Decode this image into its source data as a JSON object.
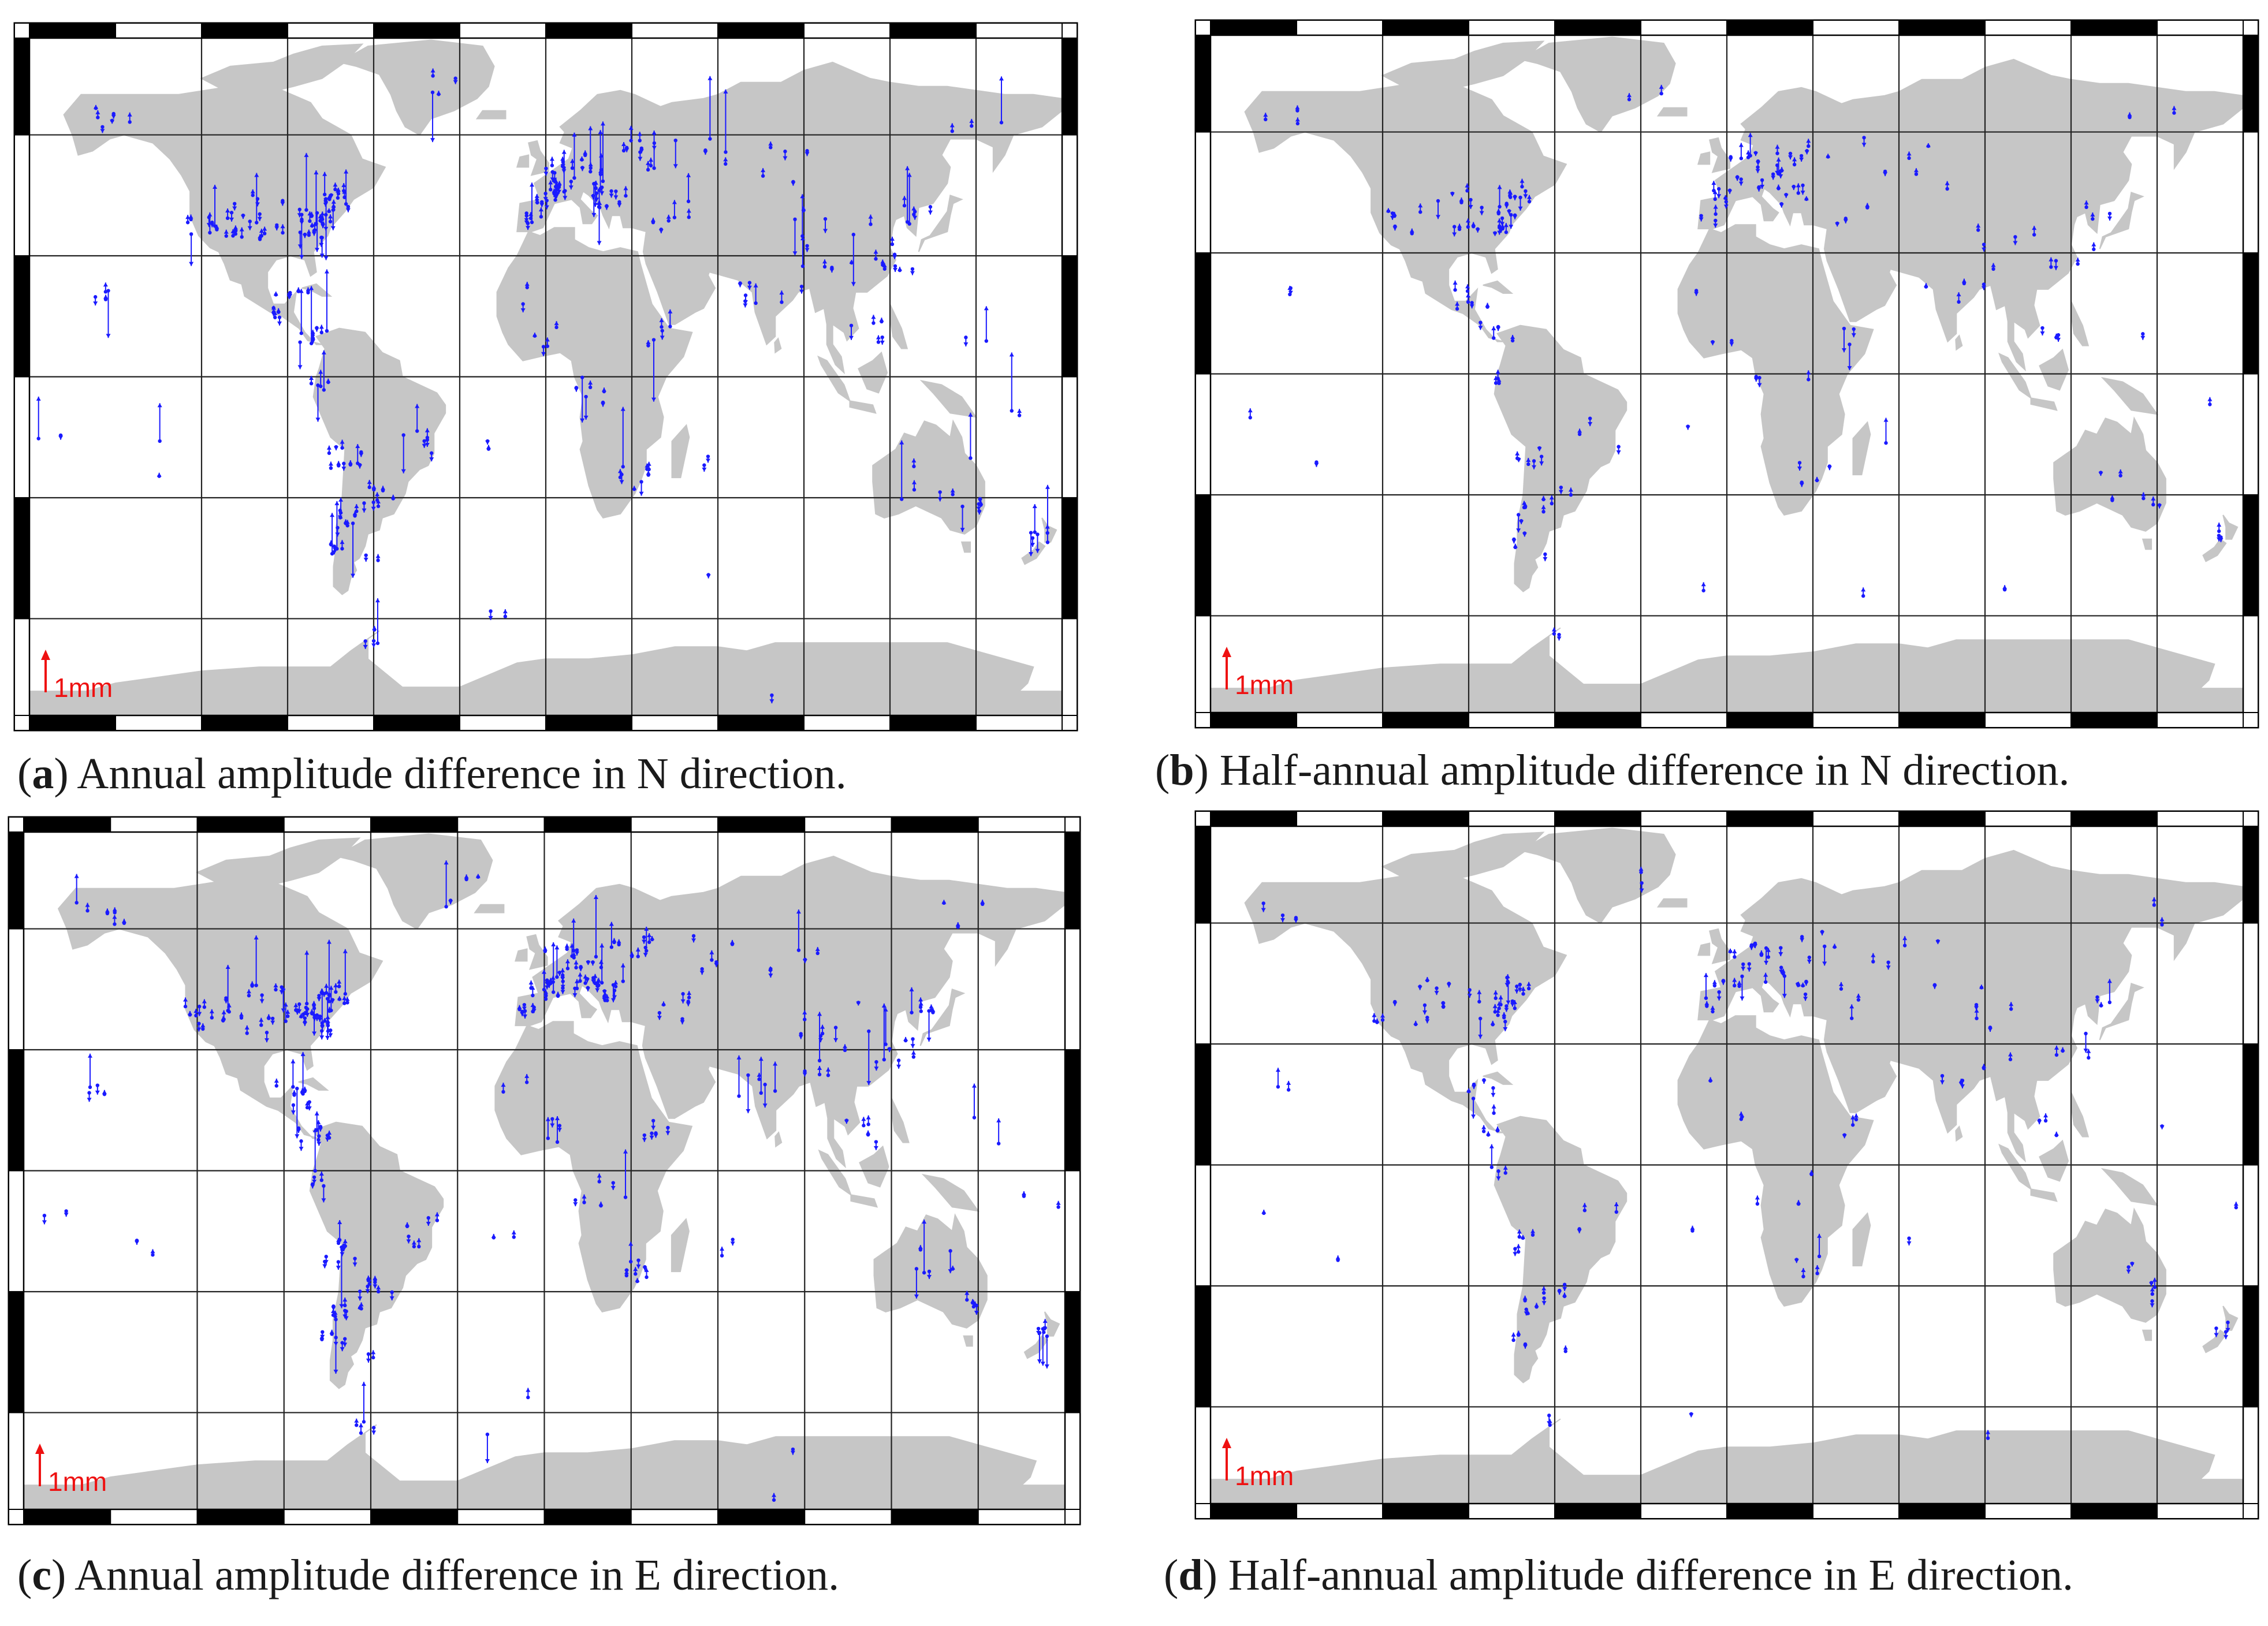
{
  "colors": {
    "land": "#c6c6c6",
    "ocean": "#ffffff",
    "grid": "#222222",
    "vector": "#1a1aff",
    "scale": "#ee1111",
    "frame_dark": "#000000",
    "frame_light": "#ffffff"
  },
  "scale_label": "1mm",
  "panels": [
    {
      "id": "a",
      "letter": "a",
      "caption_text": " Annual amplitude difference in N direction.",
      "density": 1.0,
      "seed": 11,
      "vertical": true
    },
    {
      "id": "b",
      "letter": "b",
      "caption_text": " Half-annual amplitude difference in N direction.",
      "density": 0.55,
      "seed": 23,
      "vertical": false
    },
    {
      "id": "c",
      "letter": "c",
      "caption_text": " Annual amplitude difference in E direction.",
      "density": 1.0,
      "seed": 37,
      "vertical": true
    },
    {
      "id": "d",
      "letter": "d",
      "caption_text": " Half-annual amplitude difference in E direction.",
      "density": 0.5,
      "seed": 51,
      "vertical": false
    }
  ]
}
